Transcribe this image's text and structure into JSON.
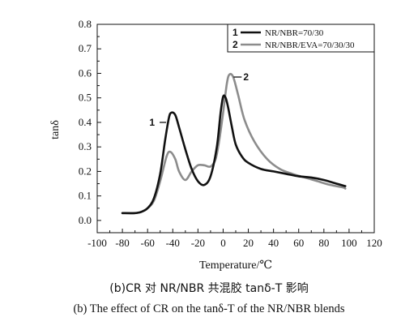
{
  "chart_data": {
    "type": "line",
    "title": "",
    "xlabel": "Temperature/℃",
    "ylabel": "tanδ",
    "xlim": [
      -100,
      120
    ],
    "ylim": [
      -0.05,
      0.8
    ],
    "xticks": [
      "-100",
      "-80",
      "-60",
      "-40",
      "-20",
      "0",
      "20",
      "40",
      "60",
      "80",
      "100",
      "120"
    ],
    "yticks": [
      "0.0",
      "0.1",
      "0.2",
      "0.3",
      "0.4",
      "0.5",
      "0.6",
      "0.7",
      "0.8"
    ],
    "grid": false,
    "legend_position": "top-right",
    "series": [
      {
        "name": "NR/NBR=70/30",
        "legend_number": "1",
        "color": "#111111",
        "x": [
          -80,
          -70,
          -65,
          -60,
          -55,
          -50,
          -46,
          -43,
          -41,
          -38,
          -35,
          -30,
          -25,
          -20,
          -15,
          -10,
          -5,
          -2,
          0,
          2,
          4,
          7,
          10,
          15,
          20,
          30,
          40,
          50,
          60,
          70,
          80,
          90,
          97
        ],
        "y": [
          0.03,
          0.03,
          0.035,
          0.05,
          0.09,
          0.19,
          0.33,
          0.42,
          0.44,
          0.43,
          0.38,
          0.29,
          0.21,
          0.16,
          0.145,
          0.18,
          0.3,
          0.44,
          0.505,
          0.5,
          0.46,
          0.38,
          0.31,
          0.26,
          0.235,
          0.21,
          0.2,
          0.19,
          0.18,
          0.175,
          0.165,
          0.15,
          0.14
        ]
      },
      {
        "name": "NR/NBR/EVA=70/30/30",
        "legend_number": "2",
        "color": "#8c8c8c",
        "x": [
          -80,
          -70,
          -65,
          -60,
          -55,
          -50,
          -45,
          -42,
          -38,
          -35,
          -30,
          -25,
          -20,
          -15,
          -10,
          -6,
          -3,
          0,
          3,
          5,
          8,
          12,
          17,
          25,
          35,
          45,
          55,
          65,
          75,
          85,
          95,
          97
        ],
        "y": [
          0.03,
          0.03,
          0.035,
          0.05,
          0.08,
          0.16,
          0.26,
          0.28,
          0.25,
          0.2,
          0.165,
          0.2,
          0.225,
          0.225,
          0.22,
          0.25,
          0.33,
          0.44,
          0.56,
          0.595,
          0.585,
          0.51,
          0.41,
          0.32,
          0.25,
          0.21,
          0.19,
          0.175,
          0.16,
          0.145,
          0.135,
          0.13
        ]
      }
    ],
    "annotations": [
      {
        "text": "1",
        "x": -44,
        "y": 0.4
      },
      {
        "text": "2",
        "x": 7,
        "y": 0.585
      }
    ]
  },
  "captions": {
    "cn": "(b)CR 对 NR/NBR 共混胶 tanδ-T 影响",
    "en": "(b) The effect of CR on the tanδ-T of the NR/NBR blends"
  }
}
